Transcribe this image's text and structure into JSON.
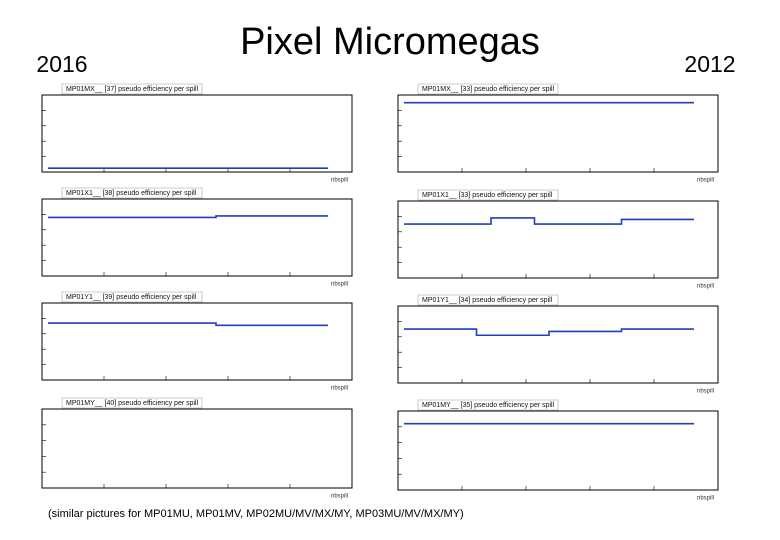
{
  "header": {
    "title": "Pixel Micromegas",
    "left_year": "2016",
    "right_year": "2012"
  },
  "panels": [
    {
      "title": "MP01MX__ [37] pseudo efficiency per spill"
    },
    {
      "title": "MP01X1__ [38] pseudo efficiency per spill"
    },
    {
      "title": "MP01Y1__ [39] pseudo efficiency per spill"
    },
    {
      "title": "MP01MY__ [40] pseudo efficiency per spill"
    },
    {
      "title": "MP01MX__ [33] pseudo efficiency per spill"
    },
    {
      "title": "MP01X1__ [33] pseudo efficiency per spill"
    },
    {
      "title": "MP01Y1__ [34] pseudo efficiency per spill"
    },
    {
      "title": "MP01MY__ [35] pseudo efficiency per spill"
    }
  ],
  "x_label": "nbspill",
  "footnote": "(similar pictures for MP01MU, MP01MV, MP02MU/MV/MX/MY, MP03MU/MV/MX/MY)"
}
